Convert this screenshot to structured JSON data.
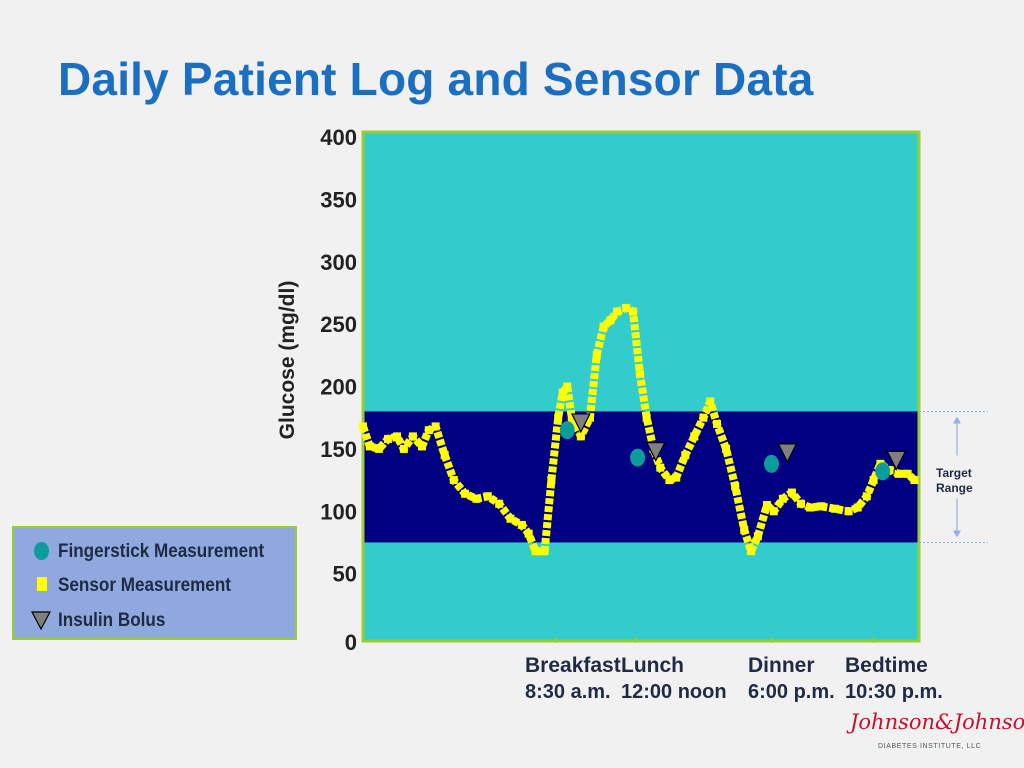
{
  "slide": {
    "title": "Daily Patient Log and Sensor Data"
  },
  "legend": {
    "items": [
      {
        "label": "Fingerstick Measurement",
        "symbol": "fingerstick-dot-icon",
        "color": "#0c9c9c"
      },
      {
        "label": "Sensor Measurement",
        "symbol": "sensor-square-icon",
        "color": "#ffff00"
      },
      {
        "label": "Insulin Bolus",
        "symbol": "insulin-triangle-icon",
        "color": "#7f7f7f"
      }
    ]
  },
  "chart_data": {
    "type": "line",
    "ylabel": "Glucose (mg/dl)",
    "ylim": [
      0,
      400
    ],
    "yticks": [
      0,
      50,
      100,
      150,
      200,
      250,
      300,
      350,
      400
    ],
    "target_range": {
      "low": 75,
      "high": 180,
      "label": [
        "Target",
        "Range"
      ]
    },
    "colors": {
      "plot_background": "#33cccc",
      "target_band": "#000080",
      "sensor": "#ffff00",
      "fingerstick": "#0c9c9c",
      "insulin": "#7f7f7f",
      "frame": "#9acd32"
    },
    "x_annotations": [
      {
        "label": "Breakfast",
        "time": "8:30 a.m.",
        "x": 8.5
      },
      {
        "label": "Lunch",
        "time": "12:00 noon",
        "x": 12.0
      },
      {
        "label": "Dinner",
        "time": "6:00 p.m.",
        "x": 18.0
      },
      {
        "label": "Bedtime",
        "time": "10:30 p.m.",
        "x": 22.5
      }
    ],
    "xlim": [
      0,
      24.5
    ],
    "series": [
      {
        "name": "Sensor Measurement",
        "marker": "square",
        "points": [
          [
            0.0,
            168
          ],
          [
            0.3,
            152
          ],
          [
            0.7,
            150
          ],
          [
            1.1,
            158
          ],
          [
            1.5,
            160
          ],
          [
            1.8,
            150
          ],
          [
            2.2,
            160
          ],
          [
            2.6,
            152
          ],
          [
            2.9,
            165
          ],
          [
            3.2,
            168
          ],
          [
            3.6,
            145
          ],
          [
            4.0,
            125
          ],
          [
            4.5,
            114
          ],
          [
            5.0,
            110
          ],
          [
            5.5,
            112
          ],
          [
            6.0,
            106
          ],
          [
            6.5,
            94
          ],
          [
            7.0,
            89
          ],
          [
            7.3,
            82
          ],
          [
            7.6,
            68
          ],
          [
            8.0,
            68
          ],
          [
            8.3,
            125
          ],
          [
            8.6,
            175
          ],
          [
            8.8,
            195
          ],
          [
            9.0,
            200
          ],
          [
            9.2,
            175
          ],
          [
            9.4,
            168
          ],
          [
            9.6,
            160
          ],
          [
            10.0,
            175
          ],
          [
            10.3,
            225
          ],
          [
            10.6,
            248
          ],
          [
            10.9,
            253
          ],
          [
            11.2,
            260
          ],
          [
            11.6,
            263
          ],
          [
            11.9,
            260
          ],
          [
            12.2,
            210
          ],
          [
            12.5,
            175
          ],
          [
            12.8,
            150
          ],
          [
            13.1,
            135
          ],
          [
            13.5,
            125
          ],
          [
            13.8,
            127
          ],
          [
            14.2,
            145
          ],
          [
            14.6,
            160
          ],
          [
            15.0,
            175
          ],
          [
            15.3,
            188
          ],
          [
            15.6,
            170
          ],
          [
            16.0,
            150
          ],
          [
            16.4,
            120
          ],
          [
            16.8,
            85
          ],
          [
            17.1,
            68
          ],
          [
            17.4,
            80
          ],
          [
            17.8,
            105
          ],
          [
            18.1,
            100
          ],
          [
            18.5,
            110
          ],
          [
            18.9,
            115
          ],
          [
            19.3,
            106
          ],
          [
            19.7,
            103
          ],
          [
            20.2,
            104
          ],
          [
            20.8,
            102
          ],
          [
            21.4,
            100
          ],
          [
            21.8,
            103
          ],
          [
            22.2,
            112
          ],
          [
            22.5,
            125
          ],
          [
            22.8,
            138
          ],
          [
            23.2,
            133
          ],
          [
            23.6,
            130
          ],
          [
            24.0,
            130
          ],
          [
            24.3,
            125
          ]
        ]
      },
      {
        "name": "Fingerstick Measurement",
        "marker": "dot",
        "points": [
          [
            9.0,
            165
          ],
          [
            12.1,
            143
          ],
          [
            18.0,
            138
          ],
          [
            22.9,
            132
          ]
        ]
      },
      {
        "name": "Insulin Bolus",
        "marker": "triangle",
        "points": [
          [
            9.6,
            170
          ],
          [
            12.9,
            147
          ],
          [
            18.7,
            146
          ],
          [
            23.5,
            140
          ]
        ]
      }
    ]
  },
  "branding": {
    "logo_text": "Johnson&Johnson",
    "logo_sub": "DIABETES INSTITUTE, LLC"
  }
}
